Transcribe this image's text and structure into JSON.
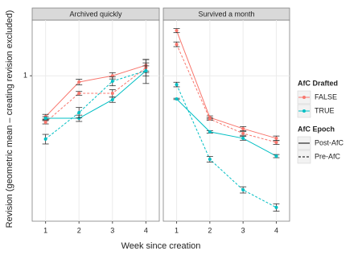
{
  "chart_data": {
    "type": "line",
    "y_label": "Revision (geometric mean – creating revision excluded)",
    "x_label": "Week since creation",
    "x": [
      1,
      2,
      3,
      4
    ],
    "xlim": [
      0.6,
      4.4
    ],
    "xticks": [
      1,
      2,
      3,
      4
    ],
    "ylim": [
      0.25,
      1.7
    ],
    "yticks": [
      1
    ],
    "log_scale": true,
    "grid": true,
    "legends": [
      {
        "title": "AfC Drafted",
        "entries": [
          {
            "label": "FALSE",
            "color": "#f8766d"
          },
          {
            "label": "TRUE",
            "color": "#00bfc4"
          }
        ]
      },
      {
        "title": "AfC Epoch",
        "entries": [
          {
            "label": "Post-AfC",
            "dash": "solid"
          },
          {
            "label": "Pre-AfC",
            "dash": "dashed"
          }
        ]
      }
    ],
    "panels": [
      {
        "title": "Archived quickly",
        "series": [
          {
            "color": "#f8766d",
            "dash": "solid",
            "values": [
              0.677,
              0.942,
              1.0,
              1.106
            ],
            "errors": [
              0.015,
              0.025,
              0.03,
              0.06
            ]
          },
          {
            "color": "#f8766d",
            "dash": "dashed",
            "values": [
              0.642,
              0.846,
              0.846,
              1.081
            ],
            "errors": [
              0.01,
              0.015,
              0.03,
              0.05
            ]
          },
          {
            "color": "#00bfc4",
            "dash": "solid",
            "values": [
              0.667,
              0.667,
              0.796,
              1.049
            ],
            "errors": [
              0.01,
              0.02,
              0.02,
              0.12
            ]
          },
          {
            "color": "#00bfc4",
            "dash": "dashed",
            "values": [
              0.547,
              0.704,
              0.949,
              1.049
            ],
            "errors": [
              0.025,
              0.035,
              0.04,
              0.05
            ]
          }
        ]
      },
      {
        "title": "Survived a month",
        "series": [
          {
            "color": "#f8766d",
            "dash": "solid",
            "values": [
              1.538,
              0.672,
              0.604,
              0.551
            ],
            "errors": [
              0.03,
              0.01,
              0.012,
              0.012
            ]
          },
          {
            "color": "#f8766d",
            "dash": "dashed",
            "values": [
              1.35,
              0.662,
              0.577,
              0.53
            ],
            "errors": [
              0.03,
              0.008,
              0.01,
              0.01
            ]
          },
          {
            "color": "#00bfc4",
            "dash": "solid",
            "values": [
              0.802,
              0.586,
              0.551,
              0.465
            ],
            "errors": [
              0.005,
              0.007,
              0.01,
              0.007
            ]
          },
          {
            "color": "#00bfc4",
            "dash": "dashed",
            "values": [
              0.92,
              0.451,
              0.337,
              0.285
            ],
            "errors": [
              0.02,
              0.012,
              0.01,
              0.01
            ]
          }
        ]
      }
    ]
  }
}
